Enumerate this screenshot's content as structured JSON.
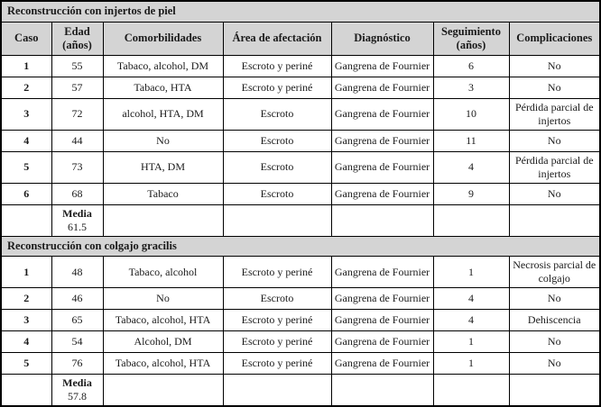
{
  "page": {
    "background": "#ffffff",
    "border_color": "#000000",
    "header_bg": "#d4d4d4",
    "text_color": "#1a1a1a"
  },
  "table": {
    "columns": [
      {
        "key": "caso",
        "label": "Caso"
      },
      {
        "key": "edad",
        "label": "Edad\n(años)"
      },
      {
        "key": "comorbilidades",
        "label": "Comorbilidades"
      },
      {
        "key": "area",
        "label": "Área de afectación"
      },
      {
        "key": "diagnostico",
        "label": "Diagnóstico"
      },
      {
        "key": "seguimiento",
        "label": "Seguimiento\n(años)"
      },
      {
        "key": "complicaciones",
        "label": "Complicaciones"
      }
    ],
    "sections": [
      {
        "title": "Reconstrucción con injertos de piel",
        "rows": [
          {
            "cells": [
              "1",
              "55",
              "Tabaco, alcohol, DM",
              "Escroto y periné",
              "Gangrena de Fournier",
              "6",
              "No"
            ]
          },
          {
            "cells": [
              "2",
              "57",
              "Tabaco, HTA",
              "Escroto y periné",
              "Gangrena de Fournier",
              "3",
              "No"
            ]
          },
          {
            "cells": [
              "3",
              "72",
              "alcohol, HTA, DM",
              "Escroto",
              "Gangrena de Fournier",
              "10",
              "Pérdida parcial de injertos"
            ]
          },
          {
            "cells": [
              "4",
              "44",
              "No",
              "Escroto",
              "Gangrena de Fournier",
              "11",
              "No"
            ]
          },
          {
            "cells": [
              "5",
              "73",
              "HTA, DM",
              "Escroto",
              "Gangrena de Fournier",
              "4",
              "Pérdida parcial de injertos"
            ]
          },
          {
            "cells": [
              "6",
              "68",
              "Tabaco",
              "Escroto",
              "Gangrena de Fournier",
              "9",
              "No"
            ]
          },
          {
            "type": "media",
            "media_label": "Media",
            "cells": [
              "",
              "61.5",
              "",
              "",
              "",
              "",
              ""
            ]
          }
        ]
      },
      {
        "title": "Reconstrucción con colgajo gracilis",
        "rows": [
          {
            "cells": [
              "1",
              "48",
              "Tabaco, alcohol",
              "Escroto y periné",
              "Gangrena de Fournier",
              "1",
              "Necrosis parcial de colgajo"
            ]
          },
          {
            "cells": [
              "2",
              "46",
              "No",
              "Escroto",
              "Gangrena de Fournier",
              "4",
              "No"
            ]
          },
          {
            "cells": [
              "3",
              "65",
              "Tabaco, alcohol, HTA",
              "Escroto y periné",
              "Gangrena de Fournier",
              "4",
              "Dehiscencia"
            ]
          },
          {
            "cells": [
              "4",
              "54",
              "Alcohol, DM",
              "Escroto y periné",
              "Gangrena de Fournier",
              "1",
              "No"
            ]
          },
          {
            "cells": [
              "5",
              "76",
              "Tabaco, alcohol, HTA",
              "Escroto y periné",
              "Gangrena de Fournier",
              "1",
              "No"
            ]
          },
          {
            "type": "media",
            "media_label": "Media",
            "cells": [
              "",
              "57.8",
              "",
              "",
              "",
              "",
              ""
            ]
          }
        ]
      }
    ]
  }
}
